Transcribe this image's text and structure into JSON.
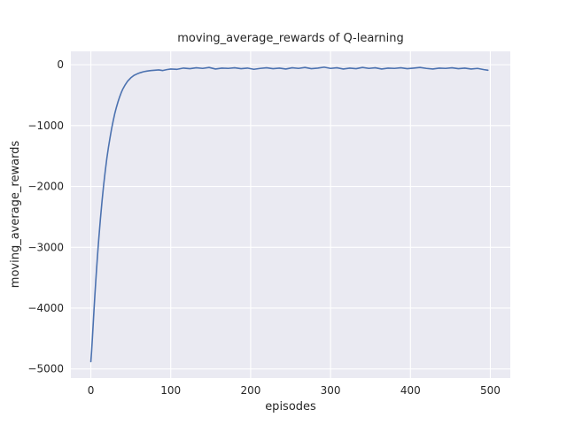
{
  "chart_data": {
    "type": "line",
    "title": "moving_average_rewards of Q-learning",
    "xlabel": "episodes",
    "ylabel": "moving_average_rewards",
    "xlim": [
      -25,
      525
    ],
    "ylim": [
      -5150,
      220
    ],
    "x_ticks": [
      0,
      100,
      200,
      300,
      400,
      500
    ],
    "x_tick_labels": [
      "0",
      "100",
      "200",
      "300",
      "400",
      "500"
    ],
    "y_ticks": [
      0,
      -1000,
      -2000,
      -3000,
      -4000,
      -5000
    ],
    "y_tick_labels": [
      "0",
      "−1000",
      "−2000",
      "−3000",
      "−4000",
      "−5000"
    ],
    "grid": true,
    "legend_position": "none",
    "plot_background": "#eaeaf2",
    "grid_color": "#ffffff",
    "line_color": "#4c72b0",
    "series": [
      {
        "name": "moving_average_rewards",
        "x": [
          0,
          1,
          2,
          3,
          4,
          5,
          6,
          7,
          8,
          9,
          10,
          12,
          14,
          16,
          18,
          20,
          22,
          24,
          26,
          28,
          30,
          32,
          34,
          36,
          38,
          40,
          43,
          46,
          50,
          54,
          58,
          62,
          66,
          70,
          75,
          80,
          85,
          90,
          95,
          100,
          108,
          116,
          124,
          132,
          140,
          148,
          156,
          164,
          172,
          180,
          188,
          196,
          204,
          212,
          220,
          228,
          236,
          244,
          252,
          260,
          268,
          276,
          284,
          292,
          300,
          308,
          316,
          324,
          332,
          340,
          348,
          356,
          364,
          372,
          380,
          388,
          396,
          404,
          412,
          420,
          428,
          436,
          444,
          452,
          460,
          468,
          476,
          484,
          492,
          497
        ],
        "y": [
          -4880,
          -4700,
          -4480,
          -4250,
          -4020,
          -3800,
          -3590,
          -3390,
          -3200,
          -3020,
          -2850,
          -2530,
          -2240,
          -1980,
          -1750,
          -1540,
          -1360,
          -1200,
          -1050,
          -920,
          -800,
          -700,
          -610,
          -530,
          -460,
          -400,
          -330,
          -270,
          -215,
          -175,
          -150,
          -130,
          -115,
          -105,
          -95,
          -90,
          -85,
          -95,
          -80,
          -70,
          -75,
          -55,
          -65,
          -50,
          -60,
          -45,
          -70,
          -55,
          -60,
          -50,
          -65,
          -55,
          -75,
          -60,
          -50,
          -65,
          -55,
          -70,
          -50,
          -60,
          -45,
          -65,
          -55,
          -40,
          -60,
          -50,
          -70,
          -55,
          -65,
          -45,
          -60,
          -50,
          -70,
          -55,
          -60,
          -50,
          -65,
          -55,
          -45,
          -60,
          -70,
          -55,
          -60,
          -50,
          -65,
          -55,
          -70,
          -60,
          -80,
          -90
        ]
      }
    ]
  }
}
